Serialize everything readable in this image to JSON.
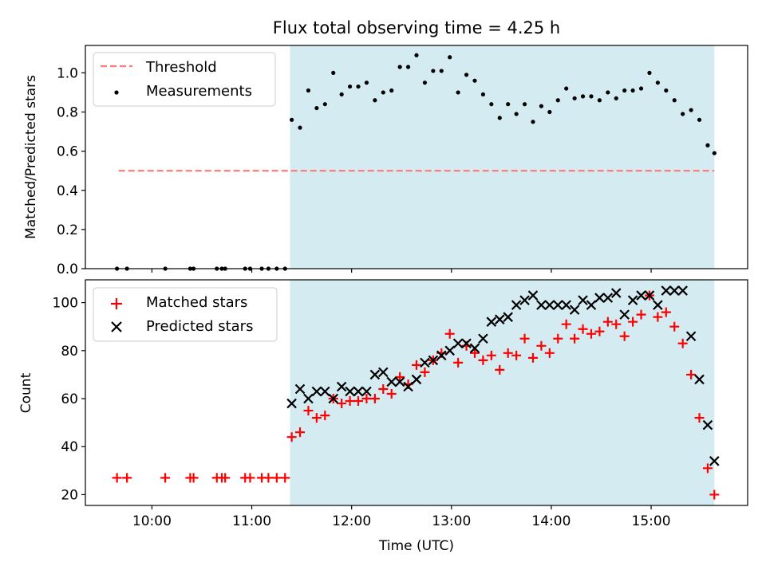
{
  "chart_data": [
    {
      "type": "scatter",
      "title": "Flux total observing time = 4.25 h",
      "xlabel": "",
      "ylabel": "Matched/Predicted stars",
      "xlim": [
        "09:20",
        "15:58"
      ],
      "ylim": [
        0,
        1.14
      ],
      "y_ticks": [
        0.0,
        0.2,
        0.4,
        0.6,
        0.8,
        1.0
      ],
      "y_tick_labels": [
        "0.0",
        "0.2",
        "0.4",
        "0.6",
        "0.8",
        "1.0"
      ],
      "shaded_span": {
        "start": "11:23",
        "end": "15:38",
        "color": "#d4ebf1"
      },
      "legend_position": "upper left",
      "threshold": {
        "name": "Threshold",
        "value": 0.5,
        "x_start": "09:40",
        "x_end": "15:38",
        "color": "#ff7777",
        "style": "dashed"
      },
      "series": [
        {
          "name": "Measurements",
          "color": "#000000",
          "marker": "dot",
          "x": [
            "09:39",
            "09:45",
            "10:08",
            "10:23",
            "10:25",
            "10:39",
            "10:42",
            "10:44",
            "10:56",
            "10:59",
            "11:06",
            "11:10",
            "11:15",
            "11:20",
            "11:24",
            "11:29",
            "11:34",
            "11:39",
            "11:44",
            "11:49",
            "11:54",
            "11:59",
            "12:04",
            "12:09",
            "12:14",
            "12:19",
            "12:24",
            "12:29",
            "12:34",
            "12:39",
            "12:44",
            "12:49",
            "12:54",
            "12:59",
            "13:04",
            "13:09",
            "13:14",
            "13:19",
            "13:24",
            "13:29",
            "13:34",
            "13:39",
            "13:44",
            "13:49",
            "13:54",
            "13:59",
            "14:04",
            "14:09",
            "14:14",
            "14:19",
            "14:24",
            "14:29",
            "14:34",
            "14:39",
            "14:44",
            "14:49",
            "14:54",
            "14:59",
            "15:04",
            "15:09",
            "15:14",
            "15:19",
            "15:24",
            "15:29",
            "15:34",
            "15:38"
          ],
          "y": [
            0,
            0,
            0,
            0,
            0,
            0,
            0,
            0,
            0,
            0,
            0,
            0,
            0,
            0,
            0.76,
            0.72,
            0.91,
            0.82,
            0.84,
            1.0,
            0.89,
            0.93,
            0.93,
            0.95,
            0.86,
            0.9,
            0.91,
            1.03,
            1.03,
            1.09,
            0.95,
            1.01,
            1.01,
            1.08,
            0.9,
            0.99,
            0.96,
            0.89,
            0.84,
            0.77,
            0.84,
            0.79,
            0.84,
            0.75,
            0.83,
            0.8,
            0.86,
            0.92,
            0.87,
            0.88,
            0.88,
            0.86,
            0.9,
            0.87,
            0.91,
            0.91,
            0.92,
            1.0,
            0.95,
            0.91,
            0.86,
            0.79,
            0.81,
            0.76,
            0.63,
            0.59
          ]
        }
      ]
    },
    {
      "type": "scatter",
      "title": "",
      "xlabel": "Time (UTC)",
      "ylabel": "Count",
      "xlim": [
        "09:20",
        "15:58"
      ],
      "ylim": [
        15.5,
        109.5
      ],
      "x_ticks": [
        "10:00",
        "11:00",
        "12:00",
        "13:00",
        "14:00",
        "15:00"
      ],
      "x_tick_labels": [
        "10:00",
        "11:00",
        "12:00",
        "13:00",
        "14:00",
        "15:00"
      ],
      "y_ticks": [
        20,
        40,
        60,
        80,
        100
      ],
      "y_tick_labels": [
        "20",
        "40",
        "60",
        "80",
        "100"
      ],
      "shaded_span": {
        "start": "11:23",
        "end": "15:38",
        "color": "#d4ebf1"
      },
      "legend_position": "upper left",
      "series": [
        {
          "name": "Matched stars",
          "color": "#ff0000",
          "marker": "plus",
          "x": [
            "09:39",
            "09:45",
            "10:08",
            "10:23",
            "10:25",
            "10:39",
            "10:42",
            "10:44",
            "10:56",
            "10:59",
            "11:06",
            "11:10",
            "11:15",
            "11:20",
            "11:24",
            "11:29",
            "11:34",
            "11:39",
            "11:44",
            "11:49",
            "11:54",
            "11:59",
            "12:04",
            "12:09",
            "12:14",
            "12:19",
            "12:24",
            "12:29",
            "12:34",
            "12:39",
            "12:44",
            "12:49",
            "12:54",
            "12:59",
            "13:04",
            "13:09",
            "13:14",
            "13:19",
            "13:24",
            "13:29",
            "13:34",
            "13:39",
            "13:44",
            "13:49",
            "13:54",
            "13:59",
            "14:04",
            "14:09",
            "14:14",
            "14:19",
            "14:24",
            "14:29",
            "14:34",
            "14:39",
            "14:44",
            "14:49",
            "14:54",
            "14:59",
            "15:04",
            "15:09",
            "15:14",
            "15:19",
            "15:24",
            "15:29",
            "15:34",
            "15:38"
          ],
          "y": [
            27,
            27,
            27,
            27,
            27,
            27,
            27,
            27,
            27,
            27,
            27,
            27,
            27,
            27,
            44,
            46,
            55,
            52,
            53,
            60,
            58,
            59,
            59,
            60,
            60,
            64,
            62,
            69,
            66,
            74,
            71,
            76,
            79,
            87,
            75,
            82,
            79,
            76,
            78,
            72,
            79,
            78,
            85,
            77,
            82,
            79,
            85,
            91,
            85,
            89,
            87,
            88,
            92,
            91,
            86,
            92,
            95,
            103,
            94,
            96,
            90,
            83,
            70,
            52,
            31,
            20
          ]
        },
        {
          "name": "Predicted stars",
          "color": "#000000",
          "marker": "x",
          "x": [
            "11:24",
            "11:29",
            "11:34",
            "11:39",
            "11:44",
            "11:49",
            "11:54",
            "11:59",
            "12:04",
            "12:09",
            "12:14",
            "12:19",
            "12:24",
            "12:29",
            "12:34",
            "12:39",
            "12:44",
            "12:49",
            "12:54",
            "12:59",
            "13:04",
            "13:09",
            "13:14",
            "13:19",
            "13:24",
            "13:29",
            "13:34",
            "13:39",
            "13:44",
            "13:49",
            "13:54",
            "13:59",
            "14:04",
            "14:09",
            "14:14",
            "14:19",
            "14:24",
            "14:29",
            "14:34",
            "14:39",
            "14:44",
            "14:49",
            "14:54",
            "14:59",
            "15:04",
            "15:09",
            "15:14",
            "15:19",
            "15:24",
            "15:29",
            "15:34",
            "15:38"
          ],
          "y": [
            58,
            64,
            60,
            63,
            63,
            60,
            65,
            63,
            63,
            63,
            70,
            71,
            67,
            67,
            65,
            68,
            75,
            76,
            78,
            80,
            83,
            83,
            81,
            85,
            92,
            93,
            94,
            99,
            101,
            103,
            99,
            99,
            99,
            99,
            97,
            101,
            99,
            102,
            102,
            104,
            95,
            101,
            103,
            103,
            99,
            105,
            105,
            105,
            86,
            68,
            49,
            34
          ]
        }
      ]
    }
  ]
}
